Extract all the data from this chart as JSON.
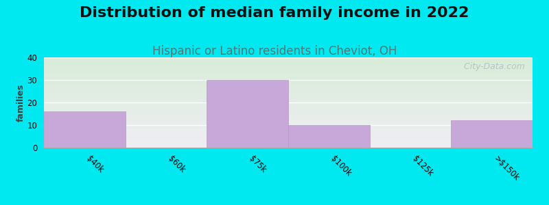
{
  "title": "Distribution of median family income in 2022",
  "subtitle": "Hispanic or Latino residents in Cheviot, OH",
  "categories": [
    "$40k",
    "$60k",
    "$75k",
    "$100k",
    "$125k",
    ">$150k"
  ],
  "values": [
    16,
    0,
    30,
    10,
    0,
    12
  ],
  "bar_color": "#c8a8d8",
  "bar_edgecolor": "#b898c8",
  "ylabel": "families",
  "ylim": [
    0,
    40
  ],
  "yticks": [
    0,
    10,
    20,
    30,
    40
  ],
  "background_outer": "#00e8f0",
  "background_top_left": "#d8ecd8",
  "background_bottom_right": "#f0eef4",
  "title_fontsize": 16,
  "subtitle_fontsize": 12,
  "subtitle_color": "#507878",
  "watermark": "  City-Data.com",
  "watermark_color": "#b0c0c0",
  "grid_color": "#ffffff",
  "tick_fontsize": 8.5,
  "ylabel_fontsize": 9
}
